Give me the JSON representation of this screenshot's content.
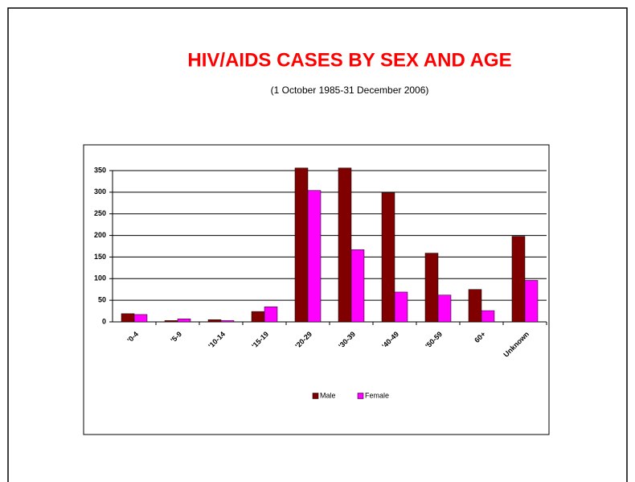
{
  "chart_data": {
    "type": "bar",
    "title": "HIV/AIDS CASES BY SEX AND AGE",
    "subtitle": "(1 October 1985-31 December 2006)",
    "categories": [
      "'0-4",
      "'5-9",
      "'10-14",
      "'15-19",
      "'20-29",
      "'30-39",
      "'40-49",
      "'50-59",
      "60+",
      "Unknown"
    ],
    "series": [
      {
        "name": "Male",
        "color": "#800000",
        "values": [
          19,
          3,
          5,
          24,
          356,
          356,
          299,
          159,
          75,
          198
        ]
      },
      {
        "name": "Female",
        "color": "#ff00ff",
        "values": [
          17,
          7,
          3,
          35,
          304,
          167,
          69,
          62,
          26,
          96
        ]
      }
    ],
    "ylim": [
      0,
      350
    ],
    "yticks": [
      0,
      50,
      100,
      150,
      200,
      250,
      300,
      350
    ],
    "grid": true,
    "legend": "bottom"
  }
}
